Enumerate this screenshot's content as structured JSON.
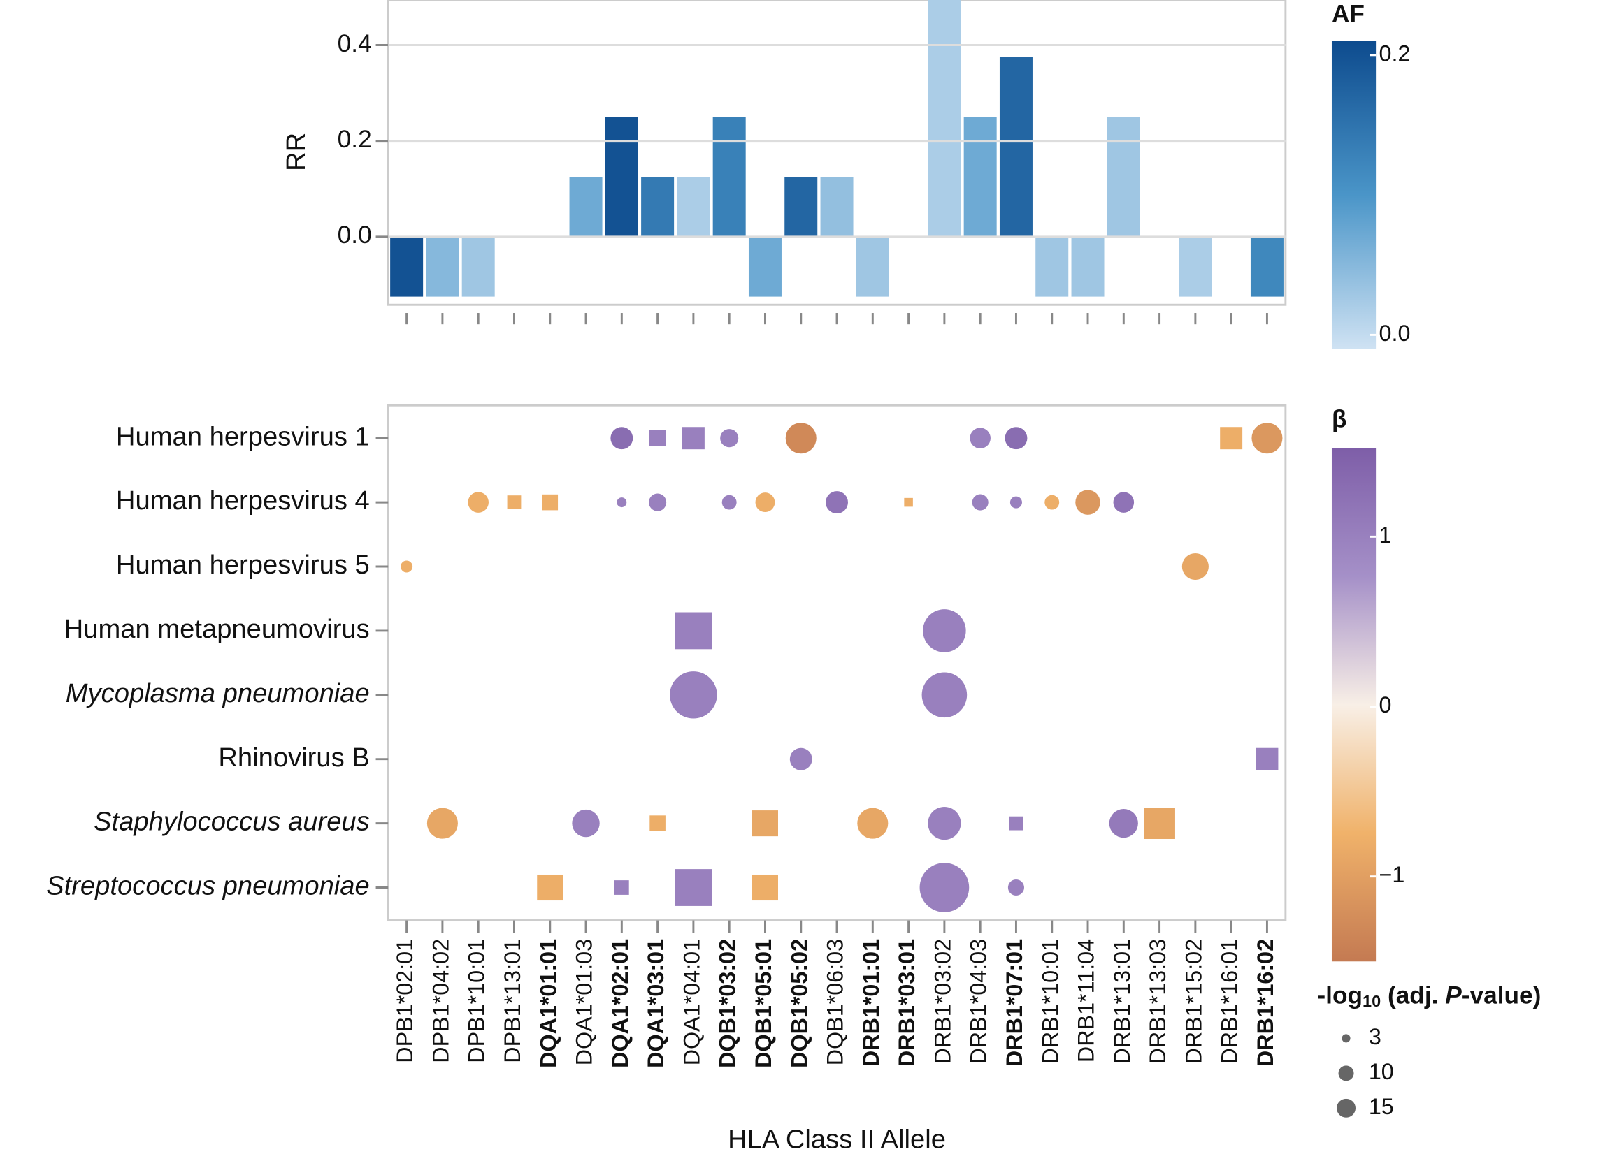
{
  "chart_data": [
    {
      "type": "bar",
      "ylabel": "RR",
      "categories": [
        "DPB1*02:01",
        "DPB1*04:02",
        "DPB1*10:01",
        "DPB1*13:01",
        "DQA1*01:01",
        "DQA1*01:03",
        "DQA1*02:01",
        "DQA1*03:01",
        "DQA1*04:01",
        "DQB1*03:02",
        "DQB1*05:01",
        "DQB1*05:02",
        "DQB1*06:03",
        "DRB1*01:01",
        "DRB1*03:01",
        "DRB1*03:02",
        "DRB1*04:03",
        "DRB1*07:01",
        "DRB1*10:01",
        "DRB1*11:04",
        "DRB1*13:01",
        "DRB1*13:03",
        "DRB1*15:02",
        "DRB1*16:01",
        "DRB1*16:02"
      ],
      "bold": [
        false,
        false,
        false,
        false,
        true,
        false,
        true,
        true,
        false,
        true,
        true,
        true,
        false,
        true,
        true,
        false,
        false,
        true,
        false,
        false,
        false,
        false,
        false,
        false,
        true
      ],
      "values": [
        -0.125,
        -0.125,
        -0.125,
        null,
        null,
        0.125,
        0.25,
        0.125,
        0.125,
        0.25,
        -0.125,
        0.125,
        0.125,
        -0.125,
        null,
        0.5,
        0.25,
        0.375,
        -0.125,
        -0.125,
        0.25,
        null,
        -0.125,
        null,
        -0.125
      ],
      "color_values": [
        0.2,
        0.05,
        0.03,
        null,
        null,
        0.07,
        0.2,
        0.14,
        0.02,
        0.13,
        0.07,
        0.17,
        0.04,
        0.03,
        null,
        0.02,
        0.07,
        0.17,
        0.03,
        0.03,
        0.03,
        null,
        0.02,
        null,
        0.12
      ],
      "ylim": [
        -0.142,
        0.494
      ],
      "yticks": [
        {
          "value": 0,
          "label": "0.0"
        },
        0.2,
        0.4
      ],
      "grid": true,
      "colorbar_title": "AF",
      "colorbar_lim": [
        -0.01,
        0.21
      ],
      "colorbar_ticks": [
        {
          "value": 0,
          "label": "0.0"
        },
        0.2
      ],
      "colors": [
        "#cfe2f3",
        "#4a95c8",
        "#0d4b8e"
      ]
    },
    {
      "type": "bubble",
      "xlabel": "HLA Class II Allele",
      "rows": [
        {
          "name": "Human herpesvirus 1",
          "italic": false,
          "points": [
            {
              "x": "DQA1*02:01",
              "value": 1.3,
              "size": 21,
              "shape": "circle"
            },
            {
              "x": "DQA1*03:01",
              "value": 1.0,
              "size": 14,
              "shape": "square"
            },
            {
              "x": "DQA1*04:01",
              "value": 1.0,
              "size": 26,
              "shape": "square"
            },
            {
              "x": "DQB1*03:02",
              "value": 1.0,
              "size": 14,
              "shape": "circle"
            },
            {
              "x": "DQB1*05:02",
              "value": -1.3,
              "size": 40,
              "shape": "circle"
            },
            {
              "x": "DRB1*04:03",
              "value": 1.0,
              "size": 18,
              "shape": "circle"
            },
            {
              "x": "DRB1*07:01",
              "value": 1.3,
              "size": 21,
              "shape": "circle"
            },
            {
              "x": "DRB1*16:01",
              "value": -0.8,
              "size": 26,
              "shape": "square"
            },
            {
              "x": "DRB1*16:02",
              "value": -1.1,
              "size": 40,
              "shape": "circle"
            }
          ]
        },
        {
          "name": "Human herpesvirus 4",
          "italic": false,
          "points": [
            {
              "x": "DPB1*10:01",
              "value": -0.8,
              "size": 18,
              "shape": "circle"
            },
            {
              "x": "DPB1*13:01",
              "value": -0.8,
              "size": 10,
              "shape": "square"
            },
            {
              "x": "DQA1*01:01",
              "value": -0.8,
              "size": 13,
              "shape": "square"
            },
            {
              "x": "DQA1*02:01",
              "value": 1.0,
              "size": 4,
              "shape": "circle"
            },
            {
              "x": "DQA1*03:01",
              "value": 1.0,
              "size": 13,
              "shape": "circle"
            },
            {
              "x": "DQB1*03:02",
              "value": 1.0,
              "size": 9,
              "shape": "circle"
            },
            {
              "x": "DQB1*05:01",
              "value": -0.8,
              "size": 16,
              "shape": "circle"
            },
            {
              "x": "DQB1*06:03",
              "value": 1.2,
              "size": 21,
              "shape": "circle"
            },
            {
              "x": "DRB1*03:01",
              "value": -0.8,
              "size": 4,
              "shape": "square"
            },
            {
              "x": "DRB1*04:03",
              "value": 1.0,
              "size": 11,
              "shape": "circle"
            },
            {
              "x": "DRB1*07:01",
              "value": 1.0,
              "size": 6,
              "shape": "circle"
            },
            {
              "x": "DRB1*10:01",
              "value": -0.8,
              "size": 9,
              "shape": "circle"
            },
            {
              "x": "DRB1*11:04",
              "value": -1.1,
              "size": 26,
              "shape": "circle"
            },
            {
              "x": "DRB1*13:01",
              "value": 1.2,
              "size": 18,
              "shape": "circle"
            }
          ]
        },
        {
          "name": "Human herpesvirus 5",
          "italic": false,
          "points": [
            {
              "x": "DPB1*02:01",
              "value": -0.8,
              "size": 6,
              "shape": "circle"
            },
            {
              "x": "DRB1*15:02",
              "value": -0.9,
              "size": 30,
              "shape": "circle"
            }
          ]
        },
        {
          "name": "Human metapneumovirus",
          "italic": false,
          "points": [
            {
              "x": "DQA1*04:01",
              "value": 1.0,
              "size": 71,
              "shape": "square"
            },
            {
              "x": "DRB1*03:02",
              "value": 1.0,
              "size": 78,
              "shape": "circle"
            }
          ]
        },
        {
          "name": "Mycoplasma pneumoniae",
          "italic": true,
          "points": [
            {
              "x": "DQA1*04:01",
              "value": 1.0,
              "size": 94,
              "shape": "circle"
            },
            {
              "x": "DRB1*03:02",
              "value": 1.0,
              "size": 86,
              "shape": "circle"
            }
          ]
        },
        {
          "name": "Rhinovirus B",
          "italic": false,
          "points": [
            {
              "x": "DQB1*05:02",
              "value": 1.0,
              "size": 21,
              "shape": "circle"
            },
            {
              "x": "DRB1*16:02",
              "value": 1.0,
              "size": 26,
              "shape": "square"
            }
          ]
        },
        {
          "name": "Staphylococcus aureus",
          "italic": true,
          "points": [
            {
              "x": "DPB1*04:02",
              "value": -0.9,
              "size": 40,
              "shape": "circle"
            },
            {
              "x": "DQA1*01:03",
              "value": 1.0,
              "size": 32,
              "shape": "circle"
            },
            {
              "x": "DQA1*03:01",
              "value": -0.8,
              "size": 13,
              "shape": "square"
            },
            {
              "x": "DQB1*05:01",
              "value": -0.9,
              "size": 35,
              "shape": "square"
            },
            {
              "x": "DRB1*01:01",
              "value": -0.9,
              "size": 40,
              "shape": "circle"
            },
            {
              "x": "DRB1*03:02",
              "value": 1.0,
              "size": 46,
              "shape": "circle"
            },
            {
              "x": "DRB1*07:01",
              "value": 1.0,
              "size": 10,
              "shape": "square"
            },
            {
              "x": "DRB1*13:01",
              "value": 1.1,
              "size": 35,
              "shape": "circle"
            },
            {
              "x": "DRB1*13:03",
              "value": -0.9,
              "size": 51,
              "shape": "square"
            }
          ]
        },
        {
          "name": "Streptococcus pneumoniae",
          "italic": true,
          "points": [
            {
              "x": "DQA1*01:01",
              "value": -0.8,
              "size": 35,
              "shape": "square"
            },
            {
              "x": "DQA1*02:01",
              "value": 1.0,
              "size": 11,
              "shape": "square"
            },
            {
              "x": "DQA1*04:01",
              "value": 1.0,
              "size": 71,
              "shape": "square"
            },
            {
              "x": "DQB1*05:01",
              "value": -0.8,
              "size": 35,
              "shape": "square"
            },
            {
              "x": "DRB1*03:02",
              "value": 1.0,
              "size": 103,
              "shape": "circle"
            },
            {
              "x": "DRB1*07:01",
              "value": 1.0,
              "size": 11,
              "shape": "circle"
            }
          ]
        }
      ],
      "colorbar_title": "β",
      "colorbar_lim": [
        -1.5,
        1.52
      ],
      "colorbar_ticks": [
        {
          "value": -1,
          "label": "−1"
        },
        0,
        1
      ],
      "colors": [
        "#c47a52",
        "#f0b26a",
        "#f8efe6",
        "#a590c8",
        "#7e5ea8"
      ],
      "size_title": [
        "-log",
        "10",
        " (adj. ",
        "P",
        "-value)"
      ],
      "size_legend": [
        3,
        10,
        15
      ],
      "size_legend_color": "#666666"
    }
  ]
}
